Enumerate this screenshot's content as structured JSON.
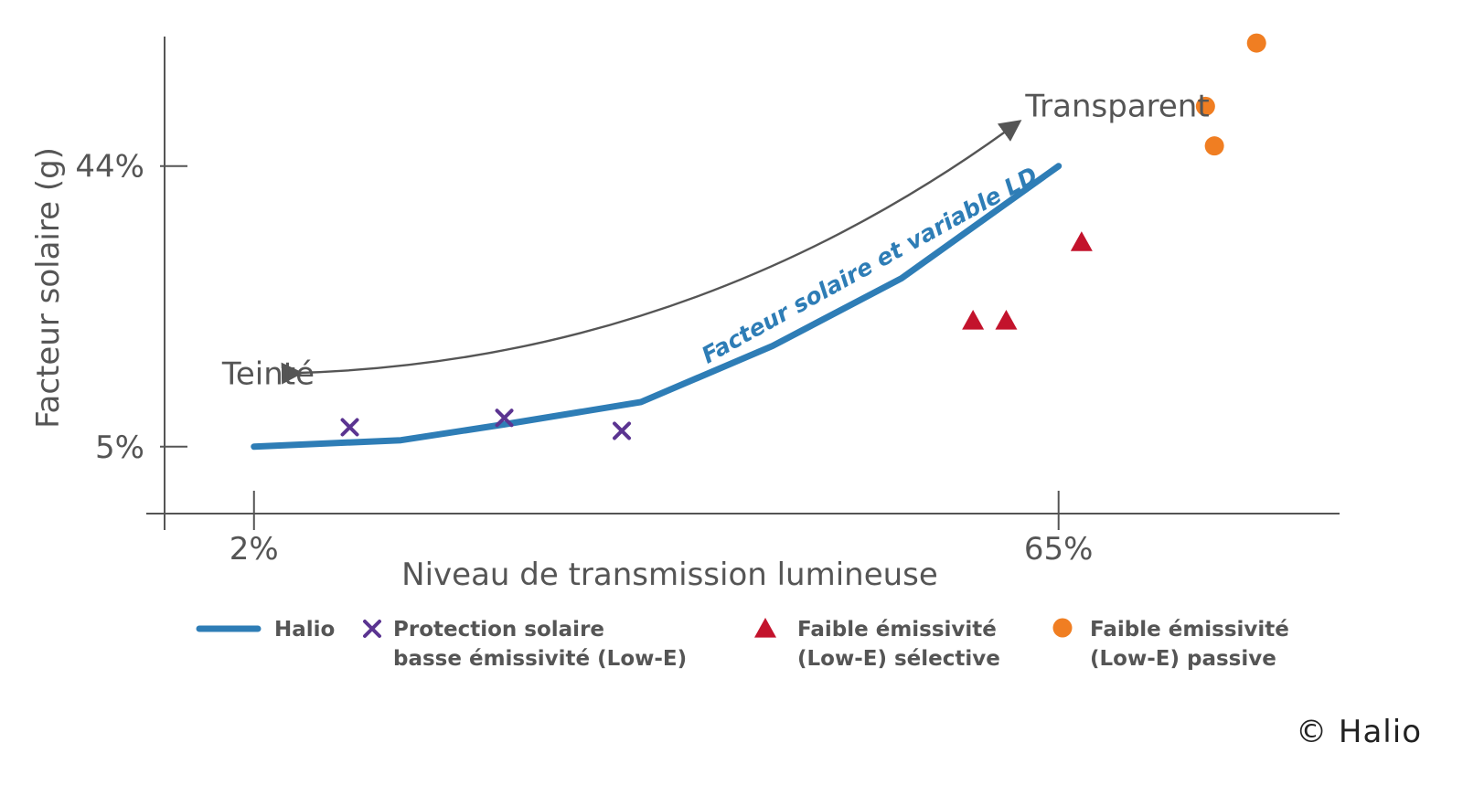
{
  "chart_data": {
    "type": "line",
    "title": "",
    "xlabel": "Niveau de transmission lumineuse",
    "ylabel": "Facteur solaire (g)",
    "xlim": [
      -5,
      87
    ],
    "ylim": [
      -4.3,
      62
    ],
    "x_ticks": [
      {
        "value": 2,
        "label": "2%"
      },
      {
        "value": 65,
        "label": "65%"
      }
    ],
    "y_ticks": [
      {
        "value": 5,
        "label": "5%"
      },
      {
        "value": 44,
        "label": "44%"
      }
    ],
    "grid": false,
    "legend_position": "bottom",
    "series": [
      {
        "name": "Halio",
        "kind": "line",
        "color": "#2e7db6",
        "marker": "none",
        "points": [
          [
            2,
            5
          ],
          [
            13.5,
            5.9
          ],
          [
            21.6,
            8.1
          ],
          [
            32.3,
            11.2
          ],
          [
            42.6,
            19
          ],
          [
            52.7,
            28.4
          ],
          [
            65,
            44
          ]
        ]
      },
      {
        "name": "Protection solaire basse émissivité (Low-E)",
        "kind": "scatter",
        "color": "#5b3491",
        "marker": "x",
        "points": [
          [
            9.5,
            7.7
          ],
          [
            21.6,
            9
          ],
          [
            30.8,
            7.2
          ]
        ]
      },
      {
        "name": "Faible émissivité (Low-E) sélective",
        "kind": "scatter",
        "color": "#c3132c",
        "marker": "triangle",
        "points": [
          [
            58.3,
            22.5
          ],
          [
            60.9,
            22.5
          ],
          [
            66.8,
            33.4
          ]
        ]
      },
      {
        "name": "Faible émissivité (Low-E) passive",
        "kind": "scatter",
        "color": "#f07e22",
        "marker": "circle",
        "points": [
          [
            76.5,
            52.3
          ],
          [
            77.2,
            46.8
          ],
          [
            80.5,
            61.1
          ]
        ]
      }
    ],
    "annotations": [
      {
        "text": "Transparent",
        "x": 62.4,
        "y": 52.4
      },
      {
        "text": "Teinté",
        "x": -0.5,
        "y": 15.2
      },
      {
        "text": "Facteur solaire et variable LD",
        "x": 37.5,
        "y": 16.5,
        "angle": -29
      }
    ],
    "arrow_endpoints": [
      [
        4.5,
        15.2
      ],
      [
        61,
        49
      ]
    ],
    "legend": [
      {
        "marker": "line",
        "color": "#2e7db6",
        "lines": [
          "Halio"
        ]
      },
      {
        "marker": "x",
        "color": "#5b3491",
        "lines": [
          "Protection solaire",
          "basse émissivité (Low-E)"
        ]
      },
      {
        "marker": "triangle",
        "color": "#c3132c",
        "lines": [
          "Faible émissivité",
          "(Low-E) sélective"
        ]
      },
      {
        "marker": "circle",
        "color": "#f07e22",
        "lines": [
          "Faible émissivité",
          "(Low-E) passive"
        ]
      }
    ],
    "axis_color": "#555555",
    "arrow_color": "#555555"
  },
  "copyright": "© Halio"
}
